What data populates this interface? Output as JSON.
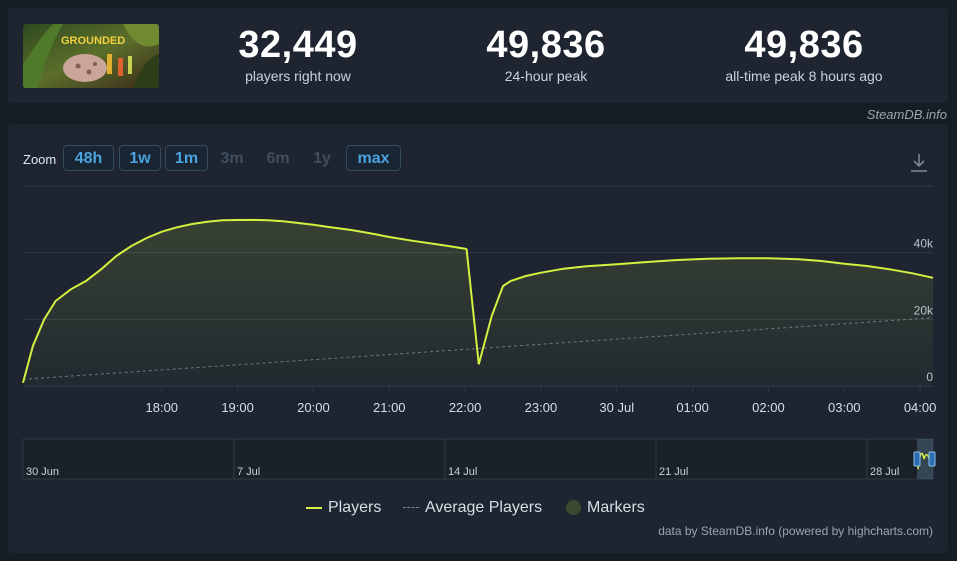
{
  "stats": [
    {
      "value": "32,449",
      "label": "players right now"
    },
    {
      "value": "49,836",
      "label": "24-hour peak"
    },
    {
      "value": "49,836",
      "label": "all-time peak 8 hours ago"
    }
  ],
  "game_thumb_text": "GROUNDED",
  "credit_top": "SteamDB.info",
  "zoom": {
    "label": "Zoom",
    "buttons": [
      {
        "label": "48h",
        "enabled": true
      },
      {
        "label": "1w",
        "enabled": true
      },
      {
        "label": "1m",
        "enabled": true
      },
      {
        "label": "3m",
        "enabled": false
      },
      {
        "label": "6m",
        "enabled": false
      },
      {
        "label": "1y",
        "enabled": false
      },
      {
        "label": "max",
        "enabled": true
      }
    ]
  },
  "icons": {
    "download": "download-icon"
  },
  "colors": {
    "players": "#d4f040",
    "average": "#6b7785",
    "markers": "#3a4a2e",
    "accent": "#4aa3df"
  },
  "chart_data": {
    "type": "line",
    "x_unit": "hours since 17:00 (29 Jul)",
    "xlim": [
      -0.83,
      11.17
    ],
    "ylim": [
      0,
      60000
    ],
    "x_ticks": [
      {
        "x": 1,
        "label": "18:00"
      },
      {
        "x": 2,
        "label": "19:00"
      },
      {
        "x": 3,
        "label": "20:00"
      },
      {
        "x": 4,
        "label": "21:00"
      },
      {
        "x": 5,
        "label": "22:00"
      },
      {
        "x": 6,
        "label": "23:00"
      },
      {
        "x": 7,
        "label": "30 Jul"
      },
      {
        "x": 8,
        "label": "01:00"
      },
      {
        "x": 9,
        "label": "02:00"
      },
      {
        "x": 10,
        "label": "03:00"
      },
      {
        "x": 11,
        "label": "04:00"
      }
    ],
    "y_ticks": [
      {
        "y": 0,
        "label": "0"
      },
      {
        "y": 20000,
        "label": "20k"
      },
      {
        "y": 40000,
        "label": "40k"
      }
    ],
    "grid": true,
    "series": [
      {
        "name": "Players",
        "x": [
          -0.83,
          -0.7,
          -0.55,
          -0.4,
          -0.2,
          0.0,
          0.2,
          0.4,
          0.6,
          0.8,
          1.0,
          1.2,
          1.4,
          1.6,
          1.8,
          2.0,
          2.2,
          2.4,
          2.6,
          2.8,
          3.0,
          3.2,
          3.5,
          3.8,
          4.0,
          4.3,
          4.6,
          4.8,
          5.0,
          5.02,
          5.18,
          5.35,
          5.5,
          5.6,
          5.8,
          6.0,
          6.3,
          6.6,
          7.0,
          7.4,
          7.8,
          8.2,
          8.6,
          9.0,
          9.4,
          9.7,
          10.0,
          10.3,
          10.6,
          10.9,
          11.17
        ],
        "y": [
          1000,
          12000,
          20000,
          25500,
          29000,
          31500,
          35000,
          39000,
          42000,
          44400,
          46300,
          47600,
          48600,
          49300,
          49700,
          49800,
          49836,
          49700,
          49400,
          48900,
          48400,
          47700,
          46800,
          45600,
          44700,
          43600,
          42600,
          41900,
          41200,
          41000,
          6500,
          21000,
          30000,
          31500,
          33000,
          34000,
          35200,
          35900,
          36500,
          37200,
          37800,
          38200,
          38300,
          38300,
          38000,
          37500,
          36700,
          36000,
          35000,
          33800,
          32449
        ]
      },
      {
        "name": "Average Players",
        "x": [
          -0.83,
          11.17
        ],
        "y": [
          2000,
          20500
        ]
      }
    ],
    "legend": [
      "Players",
      "Average Players",
      "Markers"
    ],
    "navigator": {
      "labels": [
        "30 Jun",
        "7 Jul",
        "14 Jul",
        "21 Jul",
        "28 Jul"
      ]
    }
  },
  "credit_bottom": "data by SteamDB.info (powered by highcharts.com)"
}
